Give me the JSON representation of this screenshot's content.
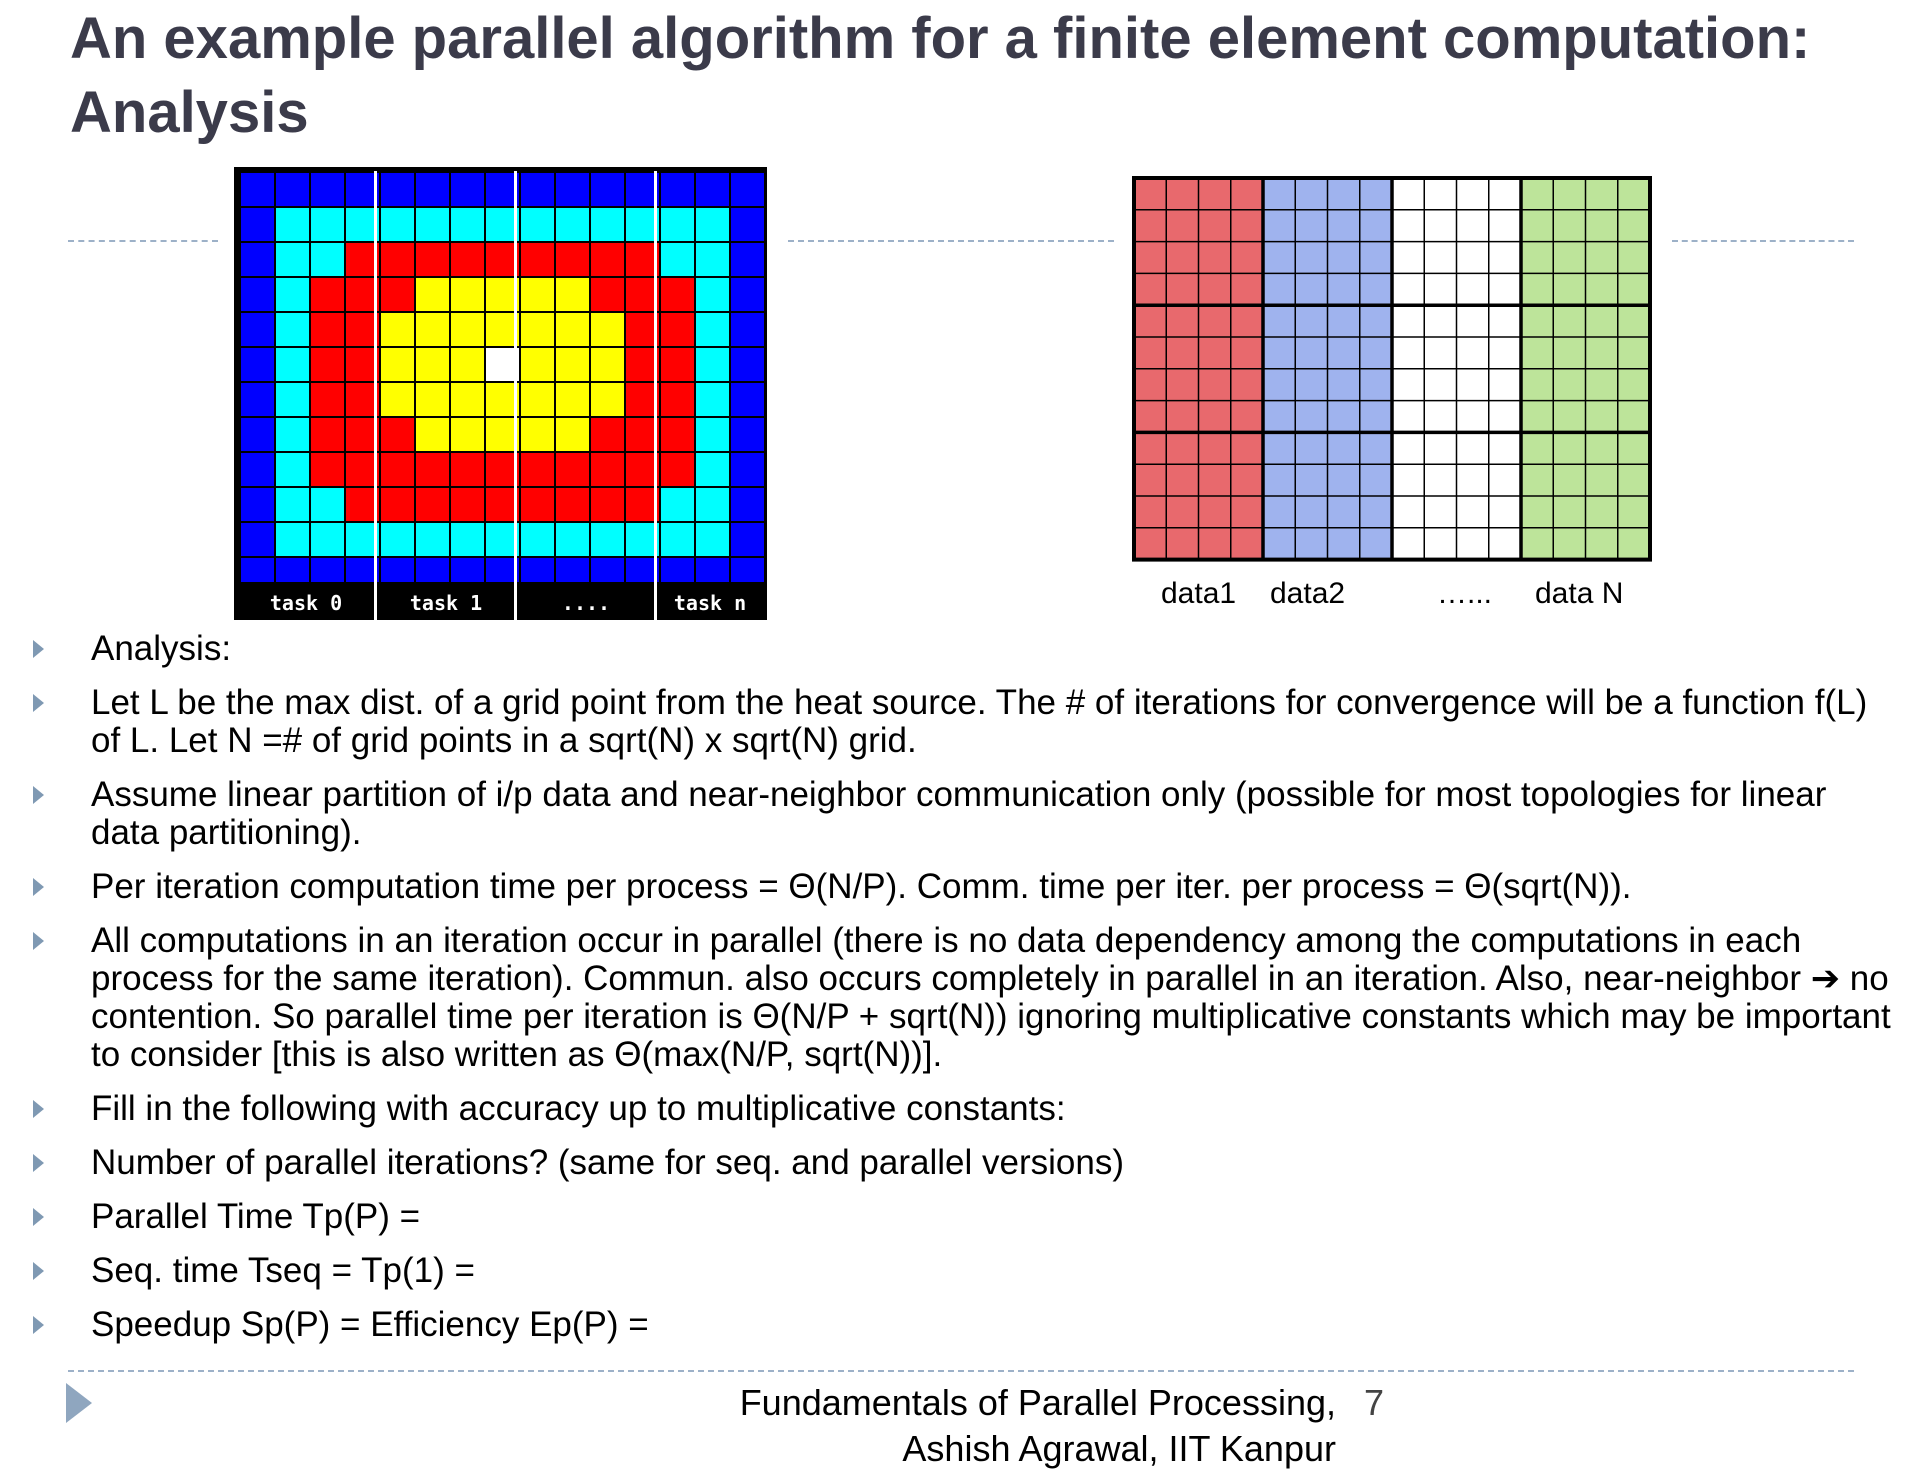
{
  "slide": {
    "title_line1": "An example parallel algorithm for a finite element computation:",
    "title_line2": "Analysis"
  },
  "heatmap": {
    "colors": {
      "outer": "#000000",
      "blue": "#0000ff",
      "cyan": "#00ffff",
      "red": "#ff0000",
      "yellow": "#ffff00",
      "source": "#ffffff",
      "grid": "#000000"
    },
    "task_labels": [
      "task 0",
      "task 1",
      "....",
      "task n"
    ]
  },
  "partition": {
    "colors": [
      "#e8696d",
      "#9fb3ee",
      "#ffffff",
      "#bde49a"
    ],
    "labels": [
      "data1",
      "data2",
      "…...",
      "data N"
    ]
  },
  "bullets": [
    "Analysis:",
    "Let L be the max dist. of a grid point from the heat source. The # of iterations for convergence will be a function f(L) of L. Let N =# of grid points in a sqrt(N) x sqrt(N) grid.",
    "Assume linear partition of i/p data and near-neighbor communication only (possible for most topologies for linear data partitioning).",
    "Per iteration computation time per process = Θ(N/P). Comm. time per iter. per process = Θ(sqrt(N)).",
    "All computations in an iteration occur in parallel (there is no data dependency among the computations in each process for the same iteration). Commun.  also occurs completely in parallel in an iteration. Also, near-neighbor ➔ no contention. So parallel time per iteration is Θ(N/P + sqrt(N)) ignoring multiplicative constants which may be important to consider [this is also written as Θ(max(N/P, sqrt(N))].",
    "Fill in the following with accuracy up to multiplicative constants:",
    "Number of parallel iterations? (same for seq.  and parallel versions)",
    "Parallel Time Tp(P) =",
    "Seq. time Tseq = Tp(1) =",
    "Speedup Sp(P) =    Efficiency Ep(P) ="
  ],
  "footer": {
    "line1": "Fundamentals of Parallel Processing,",
    "line2": "Ashish Agrawal, IIT Kanpur",
    "page_number": "7"
  },
  "theme": {
    "title_color": "#3b3b4a",
    "bullet_color": "#7f99b3",
    "rule_color": "#9db1c8"
  }
}
